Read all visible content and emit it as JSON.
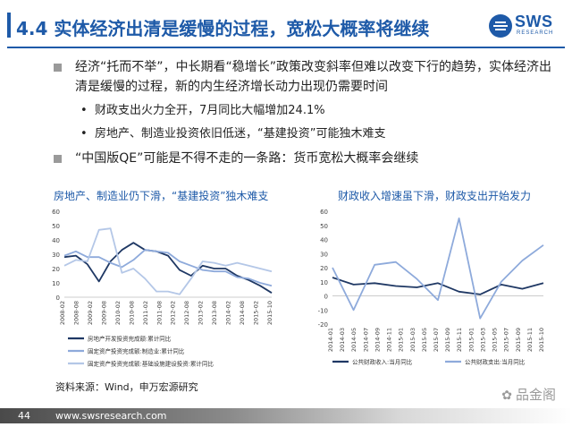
{
  "header": {
    "title": "4.4 实体经济出清是缓慢的过程，宽松大概率将继续",
    "logo_text": "SWS",
    "logo_sub": "RESEARCH"
  },
  "bullets": [
    {
      "level": 1,
      "text": "经济“托而不举”，中长期看“稳增长”政策改变斜率但难以改变下行的趋势，实体经济出清是缓慢的过程，新的内生经济增长动力出现仍需要时间"
    },
    {
      "level": 2,
      "text": "财政支出火力全开，7月同比大幅增加24.1%"
    },
    {
      "level": 2,
      "text": "房地产、制造业投资依旧低迷，“基建投资”可能独木难支"
    },
    {
      "level": 1,
      "text": "“中国版QE”可能是不得不走的一条路：货币宽松大概率会继续"
    }
  ],
  "source": "资料来源：Wind，申万宏源研究",
  "footer": {
    "page": "44",
    "url": "www.swsresearch.com"
  },
  "watermark": "品金阁",
  "colors": {
    "dark_blue": "#1f3864",
    "light_blue": "#8eaadb",
    "pale_blue": "#b4c7e7",
    "accent": "#1e5aa8"
  },
  "chart_data": [
    {
      "type": "line",
      "title": "房地产、制造业仍下滑，“基建投资”独木难支",
      "ylim": [
        0,
        60
      ],
      "yticks": [
        0,
        10,
        20,
        30,
        40,
        50,
        60
      ],
      "x": [
        "2008-02",
        "2008-07",
        "2008-12",
        "2009-05",
        "2009-10",
        "2010-03",
        "2010-08",
        "2011-01",
        "2011-06",
        "2011-11",
        "2012-04",
        "2012-09",
        "2013-02",
        "2013-07",
        "2013-12",
        "2014-05",
        "2014-10",
        "2015-03",
        "2015-08"
      ],
      "xticks": [
        "2008-02",
        "2008-08",
        "2009-02",
        "2009-08",
        "2010-02",
        "2010-08",
        "2011-02",
        "2011-08",
        "2012-02",
        "2012-08",
        "2013-02",
        "2013-08",
        "2014-02",
        "2014-08",
        "2015-02",
        "2015-10"
      ],
      "series": [
        {
          "name": "房地产开发投资完成额:累计同比",
          "color": "#1f3864",
          "values": [
            28,
            29,
            23,
            11,
            25,
            33,
            38,
            33,
            32,
            29,
            19,
            15,
            22,
            20,
            20,
            15,
            12,
            8,
            3
          ]
        },
        {
          "name": "固定资产投资完成额:制造业:累计同比",
          "color": "#8eaadb",
          "values": [
            29,
            32,
            28,
            28,
            24,
            21,
            26,
            33,
            32,
            31,
            25,
            22,
            19,
            18,
            18,
            14,
            13,
            10,
            8
          ]
        },
        {
          "name": "固定资产投资完成额:基础设施建设投资:累计同比",
          "color": "#b4c7e7",
          "values": [
            22,
            26,
            25,
            47,
            48,
            17,
            20,
            13,
            4,
            4,
            2,
            13,
            25,
            24,
            22,
            24,
            22,
            20,
            18
          ]
        }
      ]
    },
    {
      "type": "line",
      "title": "财政收入增速虽下滑，财政支出开始发力",
      "ylim": [
        -20,
        60
      ],
      "yticks": [
        -20,
        -10,
        0,
        10,
        20,
        30,
        40,
        50,
        60
      ],
      "x": [
        "2014-01",
        "2014-03",
        "2014-05",
        "2014-07",
        "2014-09",
        "2014-11",
        "2015-01",
        "2015-03",
        "2015-05",
        "2015-07",
        "2015-10"
      ],
      "xticks": [
        "2014-01",
        "2014-03",
        "2014-05",
        "2014-07",
        "2014-09",
        "2014-11",
        "2015-01",
        "2015-03",
        "2015-05",
        "2015-07",
        "2015-09",
        "2015-11",
        "2015-01",
        "2015-03",
        "2015-05",
        "2015-07",
        "2015-09",
        "2015-11",
        "2015-10"
      ],
      "series": [
        {
          "name": "公共财政收入:当月同比",
          "color": "#1f3864",
          "values": [
            13,
            8,
            9,
            7,
            6,
            9,
            3,
            1,
            8,
            5,
            9
          ]
        },
        {
          "name": "公共财政支出:当月同比",
          "color": "#8eaadb",
          "values": [
            20,
            -10,
            22,
            24,
            12,
            -3,
            55,
            -16,
            10,
            25,
            36
          ]
        }
      ]
    }
  ]
}
